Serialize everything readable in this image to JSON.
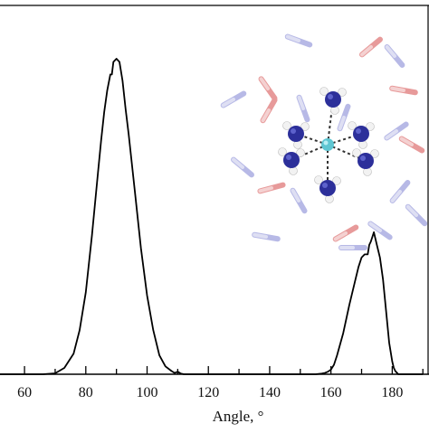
{
  "chart_data": {
    "type": "line",
    "title": "",
    "xlabel": "Angle, °",
    "ylabel": "",
    "xlim": [
      52,
      192
    ],
    "ylim": [
      0,
      1.0
    ],
    "x_ticks": [
      60,
      80,
      100,
      120,
      140,
      160,
      180
    ],
    "x_tick_labels": [
      "60",
      "80",
      "100",
      "120",
      "140",
      "160",
      "180"
    ],
    "grid": false,
    "legend": "none",
    "line_color": "#000000",
    "series": [
      {
        "x": [
          52,
          66,
          70,
          73,
          76,
          78,
          80,
          82,
          84,
          85,
          86,
          87,
          88,
          88.5,
          89,
          90,
          91,
          92,
          93,
          94,
          96,
          98,
          100,
          102,
          104,
          106,
          108,
          109,
          110,
          111,
          112,
          120,
          140,
          150,
          155,
          157,
          158,
          159,
          160,
          161,
          162,
          164,
          166,
          168,
          169,
          170,
          171,
          172,
          172.5,
          173,
          174,
          175,
          176,
          177,
          178,
          179,
          180,
          180.5,
          181,
          182,
          190
        ],
        "y": [
          0,
          0,
          0.003,
          0.02,
          0.065,
          0.14,
          0.26,
          0.44,
          0.64,
          0.74,
          0.83,
          0.9,
          0.95,
          0.95,
          0.99,
          1.0,
          0.99,
          0.93,
          0.84,
          0.76,
          0.58,
          0.4,
          0.25,
          0.14,
          0.06,
          0.025,
          0.01,
          0.004,
          0.008,
          0.002,
          0,
          0,
          0,
          0,
          0,
          0.002,
          0.004,
          0.008,
          0.015,
          0.03,
          0.06,
          0.13,
          0.22,
          0.3,
          0.34,
          0.37,
          0.38,
          0.38,
          0.41,
          0.42,
          0.45,
          0.41,
          0.37,
          0.3,
          0.2,
          0.1,
          0.04,
          0.02,
          0.01,
          0,
          0
        ]
      }
    ]
  }
}
